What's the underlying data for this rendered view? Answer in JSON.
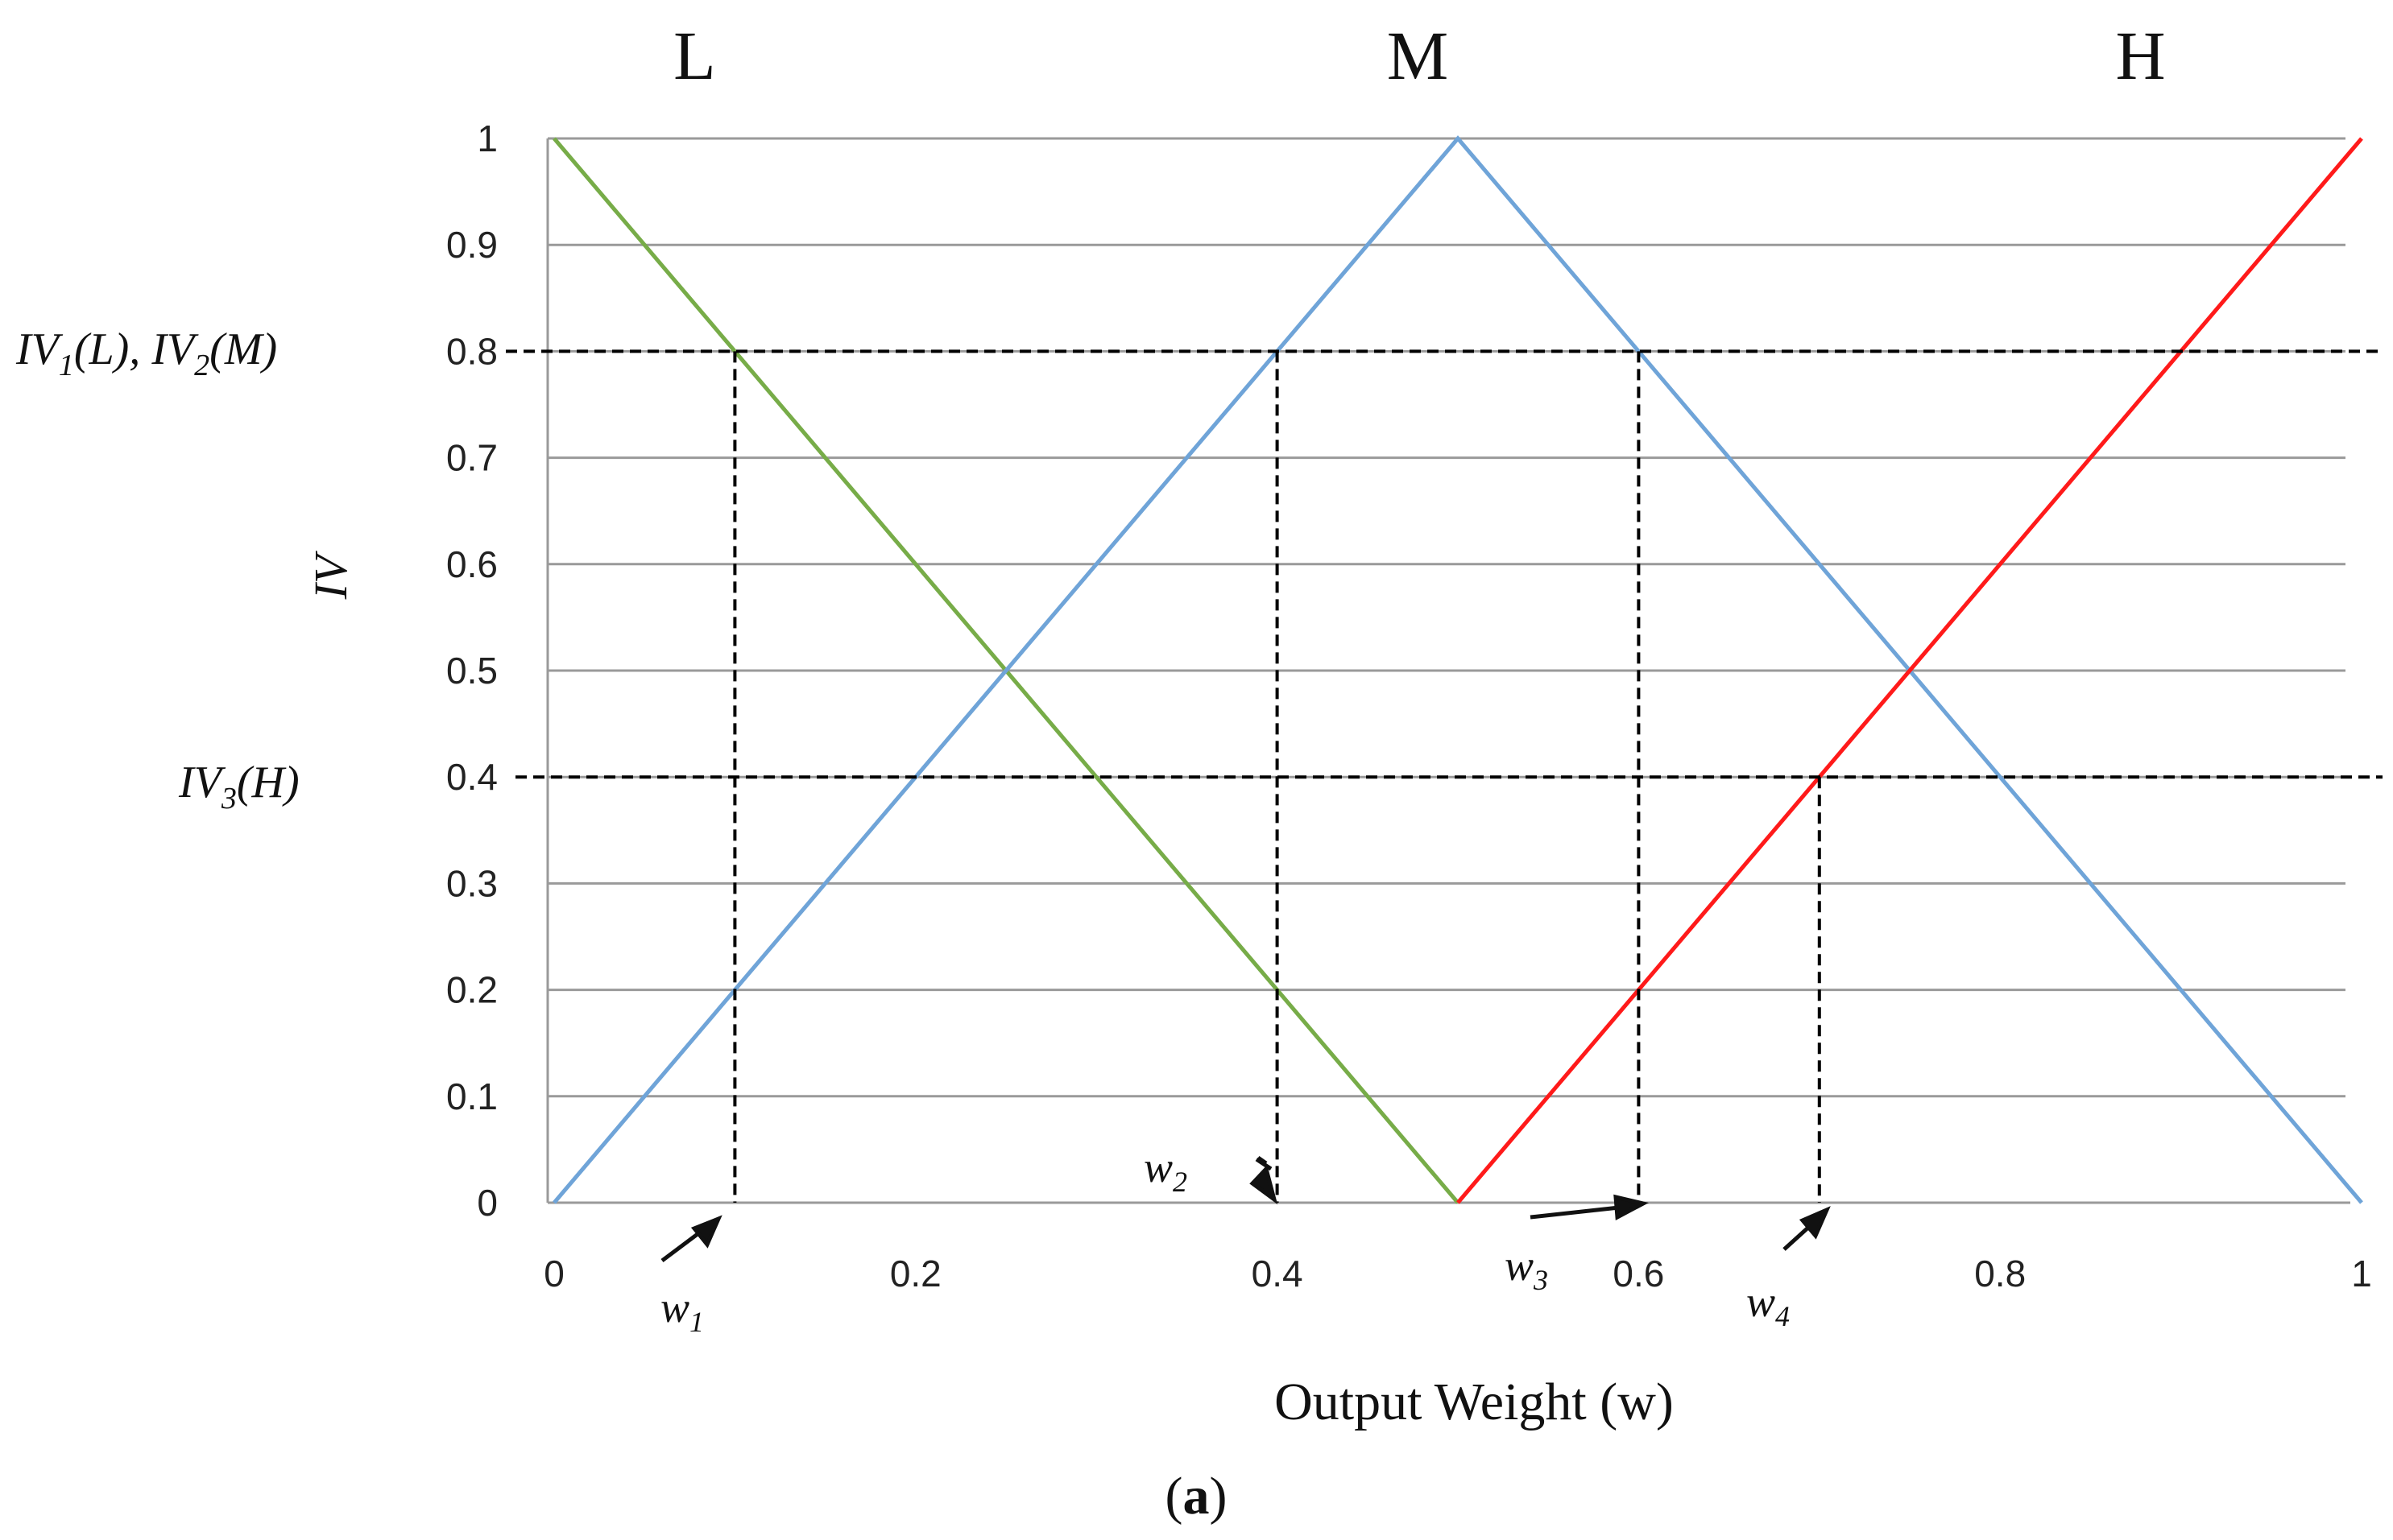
{
  "chart_data": {
    "type": "line",
    "xlabel": "Output Weight (w)",
    "ylabel": "IV",
    "xlim": [
      0,
      1
    ],
    "ylim": [
      0,
      1
    ],
    "x_ticks": [
      "0",
      "0.2",
      "0.4",
      "0.6",
      "0.8",
      "1"
    ],
    "y_ticks": [
      "0",
      "0.1",
      "0.2",
      "0.3",
      "0.4",
      "0.5",
      "0.6",
      "0.7",
      "0.8",
      "0.9",
      "1"
    ],
    "grid": true,
    "series": [
      {
        "name": "L",
        "color": "#77ac48",
        "x": [
          0,
          0.5
        ],
        "y": [
          1,
          0
        ]
      },
      {
        "name": "M",
        "color": "#6fa4d8",
        "x": [
          0,
          0.5,
          1
        ],
        "y": [
          0,
          1,
          0
        ]
      },
      {
        "name": "H",
        "color": "#ff1a1a",
        "x": [
          0.5,
          1
        ],
        "y": [
          0,
          1
        ]
      }
    ],
    "set_labels": [
      {
        "text": "L",
        "x": 0.1
      },
      {
        "text": "M",
        "x": 0.5
      },
      {
        "text": "H",
        "x": 0.9
      }
    ],
    "reference_lines": [
      {
        "level": 0.8,
        "label": "IV1(L), IV2(M)"
      },
      {
        "level": 0.4,
        "label": "IV3(H)"
      }
    ],
    "weights": [
      {
        "name": "w1",
        "x": 0.1,
        "y": 0.8
      },
      {
        "name": "w2",
        "x": 0.4,
        "y": 0.8
      },
      {
        "name": "w3",
        "x": 0.6,
        "y": 0.8
      },
      {
        "name": "w4",
        "x": 0.7,
        "y": 0.4
      }
    ]
  },
  "figure": {
    "ref_label_1": {
      "iv1": "IV",
      "sub1": "1",
      "mid1": "(L), ",
      "iv2": "IV",
      "sub2": "2",
      "tail": "(M)"
    },
    "ref_label_2": {
      "iv": "IV",
      "sub": "3",
      "tail": "(H)"
    },
    "weight_labels": [
      {
        "base": "w",
        "sub": "1"
      },
      {
        "base": "w",
        "sub": "2"
      },
      {
        "base": "w",
        "sub": "3"
      },
      {
        "base": "w",
        "sub": "4"
      }
    ],
    "caption": {
      "open": "(",
      "letter": "a",
      "close": ")"
    }
  }
}
